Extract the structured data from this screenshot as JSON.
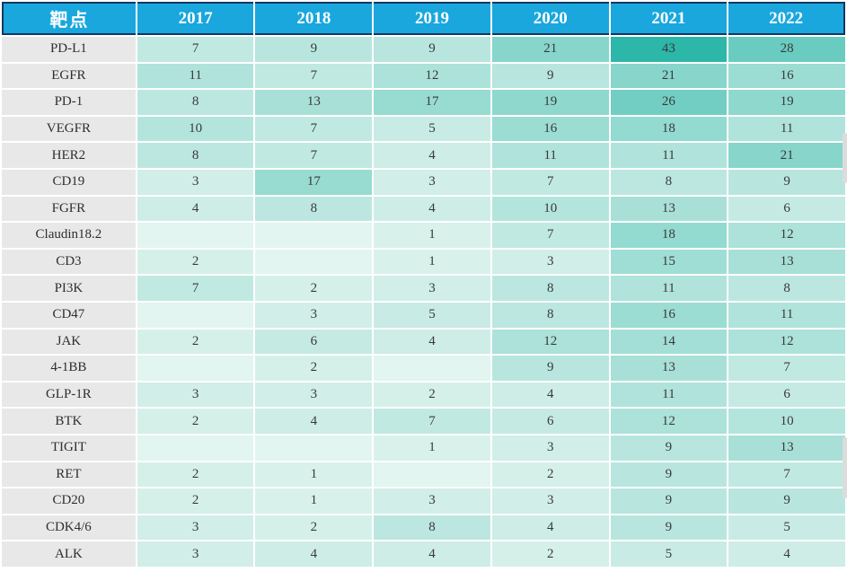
{
  "chart_data": {
    "type": "heatmap",
    "row_label_header": "靶点",
    "columns": [
      "2017",
      "2018",
      "2019",
      "2020",
      "2021",
      "2022"
    ],
    "rows": [
      {
        "label": "PD-L1",
        "values": [
          7,
          9,
          9,
          21,
          43,
          28
        ]
      },
      {
        "label": "EGFR",
        "values": [
          11,
          7,
          12,
          9,
          21,
          16
        ]
      },
      {
        "label": "PD-1",
        "values": [
          8,
          13,
          17,
          19,
          26,
          19
        ]
      },
      {
        "label": "VEGFR",
        "values": [
          10,
          7,
          5,
          16,
          18,
          11
        ]
      },
      {
        "label": "HER2",
        "values": [
          8,
          7,
          4,
          11,
          11,
          21
        ]
      },
      {
        "label": "CD19",
        "values": [
          3,
          17,
          3,
          7,
          8,
          9
        ]
      },
      {
        "label": "FGFR",
        "values": [
          4,
          8,
          4,
          10,
          13,
          6
        ]
      },
      {
        "label": "Claudin18.2",
        "values": [
          null,
          null,
          1,
          7,
          18,
          12
        ]
      },
      {
        "label": "CD3",
        "values": [
          2,
          null,
          1,
          3,
          15,
          13
        ]
      },
      {
        "label": "PI3K",
        "values": [
          7,
          2,
          3,
          8,
          11,
          8
        ]
      },
      {
        "label": "CD47",
        "values": [
          null,
          3,
          5,
          8,
          16,
          11
        ]
      },
      {
        "label": "JAK",
        "values": [
          2,
          6,
          4,
          12,
          14,
          12
        ]
      },
      {
        "label": "4-1BB",
        "values": [
          null,
          2,
          null,
          9,
          13,
          7
        ]
      },
      {
        "label": "GLP-1R",
        "values": [
          3,
          3,
          2,
          4,
          11,
          6
        ]
      },
      {
        "label": "BTK",
        "values": [
          2,
          4,
          7,
          6,
          12,
          10
        ]
      },
      {
        "label": "TIGIT",
        "values": [
          null,
          null,
          1,
          3,
          9,
          13
        ]
      },
      {
        "label": "RET",
        "values": [
          2,
          1,
          null,
          2,
          9,
          7
        ]
      },
      {
        "label": "CD20",
        "values": [
          2,
          1,
          3,
          3,
          9,
          9
        ]
      },
      {
        "label": "CDK4/6",
        "values": [
          3,
          2,
          8,
          4,
          9,
          5
        ]
      },
      {
        "label": "ALK",
        "values": [
          3,
          4,
          4,
          2,
          5,
          4
        ]
      }
    ],
    "color_scale": {
      "min_value": 1,
      "max_value": 43,
      "min_color": "#D9F1EB",
      "max_color": "#2CB7A8",
      "blank_color": "#E2F5F0"
    },
    "legend_position": "none",
    "grid": "white separators"
  },
  "colors": {
    "header_bg": "#19A7DE",
    "header_text": "#FFFFFF",
    "header_border": "#17375E",
    "row_label_bg": "#E8E8E8",
    "grid": "#FFFFFF",
    "value_text": "#3A3A3A",
    "scrollbar_fragment": "#DCDCDC"
  }
}
